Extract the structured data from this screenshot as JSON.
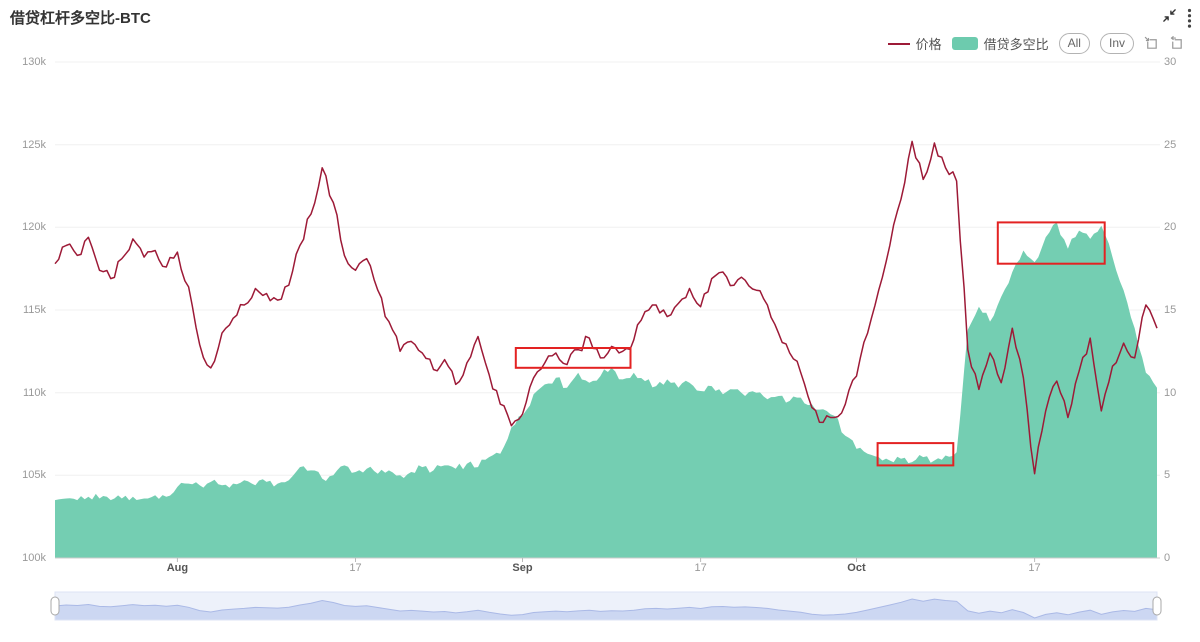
{
  "header": {
    "title": "借贷杠杆多空比-BTC"
  },
  "toolbar": {
    "icons": [
      "collapse-icon",
      "more-menu-icon"
    ]
  },
  "legend": {
    "price_label": "价格",
    "ratio_label": "借贷多空比",
    "all_label": "All",
    "inv_label": "Inv",
    "icons": [
      "zoom-select-icon",
      "zoom-reset-icon"
    ]
  },
  "theme": {
    "price_color": "#9d1a37",
    "ratio_color": "#6dcbae",
    "annotation_color": "#e32222",
    "grid_color": "#f0f0f0",
    "axis_color": "#cccccc",
    "label_color": "#999999",
    "navigator_fill": "#edf1fa",
    "navigator_area": "#ccd7f2",
    "navigator_line": "#aab9e6"
  },
  "chart_data": {
    "type": "mixed",
    "x_unit": "day",
    "days": 100,
    "x_start": "Jul 21",
    "x_ticks": [
      {
        "label": "Aug",
        "day": 11,
        "month": true
      },
      {
        "label": "17",
        "day": 27,
        "month": false
      },
      {
        "label": "Sep",
        "day": 42,
        "month": true
      },
      {
        "label": "17",
        "day": 58,
        "month": false
      },
      {
        "label": "Oct",
        "day": 72,
        "month": true
      },
      {
        "label": "17",
        "day": 88,
        "month": false
      }
    ],
    "left_axis": {
      "min": 100,
      "max": 130,
      "labels": [
        "130k",
        "125k",
        "120k",
        "115k",
        "110k",
        "105k",
        "100k"
      ],
      "tick_values": [
        130,
        125,
        120,
        115,
        110,
        105,
        100
      ]
    },
    "right_axis": {
      "min": 0,
      "max": 30,
      "labels": [
        "30",
        "25",
        "20",
        "15",
        "10",
        "5",
        "0"
      ],
      "tick_values": [
        30,
        25,
        20,
        15,
        10,
        5,
        0
      ]
    },
    "series": [
      {
        "name": "价格",
        "type": "line",
        "axis": "left",
        "color": "#9d1a37",
        "values": [
          117.8,
          118.9,
          118.3,
          119.4,
          117.4,
          116.9,
          118.1,
          119.3,
          118.2,
          118.6,
          117.6,
          118.5,
          116.4,
          112.9,
          111.5,
          113.6,
          114.5,
          115.3,
          116.3,
          116.0,
          115.6,
          116.5,
          118.9,
          120.8,
          123.6,
          121.5,
          118.3,
          117.4,
          118.1,
          116.2,
          114.3,
          112.5,
          113.1,
          112.4,
          111.4,
          112.0,
          110.5,
          111.8,
          113.4,
          111.1,
          109.3,
          108.0,
          108.7,
          110.9,
          111.8,
          112.4,
          111.7,
          112.6,
          113.3,
          112.1,
          112.8,
          112.5,
          113.2,
          114.9,
          115.3,
          114.6,
          115.4,
          116.3,
          115.2,
          116.9,
          117.3,
          116.5,
          116.8,
          116.2,
          115.3,
          113.6,
          112.4,
          111.2,
          109.1,
          108.2,
          108.5,
          109.3,
          111.0,
          113.6,
          116.2,
          118.9,
          121.7,
          125.2,
          122.9,
          125.1,
          123.6,
          122.8,
          112.6,
          110.2,
          112.4,
          110.6,
          113.9,
          110.9,
          105.1,
          108.9,
          110.7,
          108.5,
          111.3,
          113.3,
          108.9,
          111.6,
          113.0,
          112.1,
          115.3,
          113.9
        ]
      },
      {
        "name": "借贷多空比",
        "type": "area",
        "axis": "right",
        "color": "#6dcbae",
        "values": [
          3.5,
          3.6,
          3.5,
          3.7,
          3.6,
          3.5,
          3.6,
          3.7,
          3.6,
          3.8,
          3.7,
          4.3,
          4.5,
          4.4,
          4.6,
          4.4,
          4.5,
          4.7,
          4.4,
          4.6,
          4.5,
          4.7,
          5.5,
          5.3,
          4.8,
          5.0,
          5.6,
          5.2,
          5.4,
          5.1,
          5.3,
          5.0,
          5.2,
          5.5,
          5.3,
          5.6,
          5.4,
          5.7,
          5.5,
          6.1,
          6.3,
          7.9,
          8.6,
          9.9,
          10.5,
          10.9,
          10.3,
          11.2,
          10.6,
          11.0,
          11.5,
          10.8,
          11.2,
          10.7,
          10.4,
          10.8,
          10.3,
          10.6,
          10.1,
          10.4,
          9.9,
          10.2,
          9.8,
          10.0,
          9.6,
          9.8,
          9.5,
          9.7,
          9.3,
          9.0,
          8.6,
          7.4,
          6.6,
          6.3,
          6.1,
          5.9,
          6.0,
          5.8,
          6.1,
          5.9,
          6.2,
          6.4,
          13.8,
          15.2,
          14.3,
          15.8,
          17.3,
          18.6,
          17.9,
          19.4,
          20.3,
          18.7,
          19.8,
          19.3,
          20.1,
          18.2,
          16.2,
          13.9,
          11.2,
          10.3
        ]
      }
    ],
    "annotations": [
      {
        "shape": "rect",
        "axis": "left",
        "day_start": 41.4,
        "day_end": 51.7,
        "value_low": 111.5,
        "value_high": 112.7
      },
      {
        "shape": "rect",
        "axis": "right",
        "day_start": 73.9,
        "day_end": 80.7,
        "value_low": 5.6,
        "value_high": 6.95
      },
      {
        "shape": "rect",
        "axis": "right",
        "day_start": 84.7,
        "day_end": 94.3,
        "value_low": 17.8,
        "value_high": 20.3
      }
    ]
  }
}
